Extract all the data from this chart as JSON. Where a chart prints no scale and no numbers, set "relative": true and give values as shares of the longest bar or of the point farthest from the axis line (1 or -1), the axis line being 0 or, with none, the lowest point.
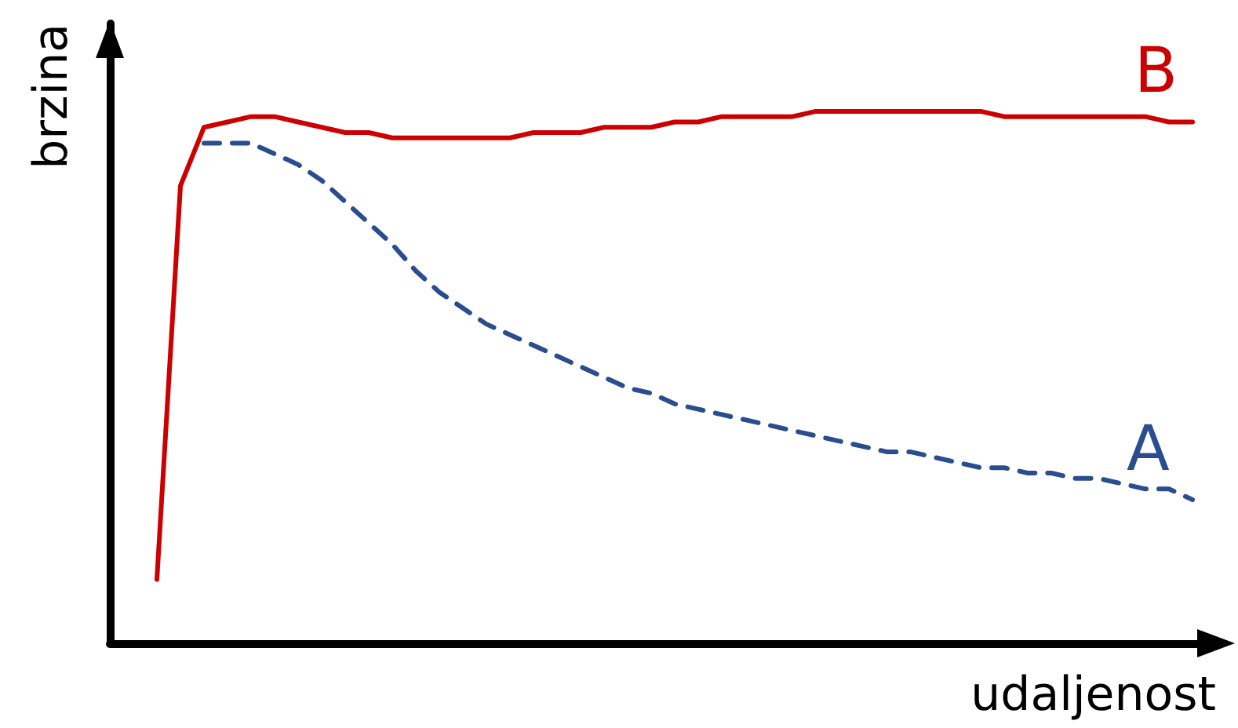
{
  "chart_data": {
    "type": "line",
    "relative": true,
    "xlabel": "udaljenost",
    "ylabel": "brzina",
    "grid": false,
    "legend": false,
    "marker": "none",
    "categories": [
      null,
      null,
      null,
      null,
      null,
      null,
      null,
      null,
      null,
      null,
      null,
      null,
      null,
      null,
      null,
      null,
      null,
      null,
      null,
      null,
      null,
      null,
      null,
      null,
      null,
      null,
      null,
      null,
      null,
      null,
      null,
      null,
      null,
      null,
      null,
      null,
      null,
      null,
      null,
      null,
      null,
      null,
      null,
      null,
      null,
      null,
      null,
      null
    ],
    "series": [
      {
        "name": "B",
        "color": "#cc0000",
        "line_style": "solid",
        "values": [
          null,
          null,
          0.12,
          0.86,
          0.97,
          0.98,
          0.99,
          0.99,
          0.98,
          0.97,
          0.96,
          0.96,
          0.95,
          0.95,
          0.95,
          0.95,
          0.95,
          0.95,
          0.96,
          0.96,
          0.96,
          0.97,
          0.97,
          0.97,
          0.98,
          0.98,
          0.99,
          0.99,
          0.99,
          0.99,
          1,
          1,
          1,
          1,
          1,
          1,
          1,
          1,
          0.99,
          0.99,
          0.99,
          0.99,
          0.99,
          0.99,
          0.99,
          0.98,
          0.98,
          null
        ]
      },
      {
        "name": "A",
        "color": "#2a4d8f",
        "line_style": "dashed",
        "values": [
          null,
          null,
          null,
          null,
          0.94,
          0.94,
          0.94,
          0.92,
          0.9,
          0.87,
          0.83,
          0.79,
          0.75,
          0.7,
          0.66,
          0.63,
          0.6,
          0.58,
          0.56,
          0.54,
          0.52,
          0.5,
          0.48,
          0.47,
          0.45,
          0.44,
          0.43,
          0.42,
          0.41,
          0.4,
          0.39,
          0.38,
          0.37,
          0.36,
          0.36,
          0.35,
          0.34,
          0.33,
          0.33,
          0.32,
          0.32,
          0.31,
          0.31,
          0.3,
          0.29,
          0.29,
          0.27,
          null
        ]
      }
    ]
  }
}
